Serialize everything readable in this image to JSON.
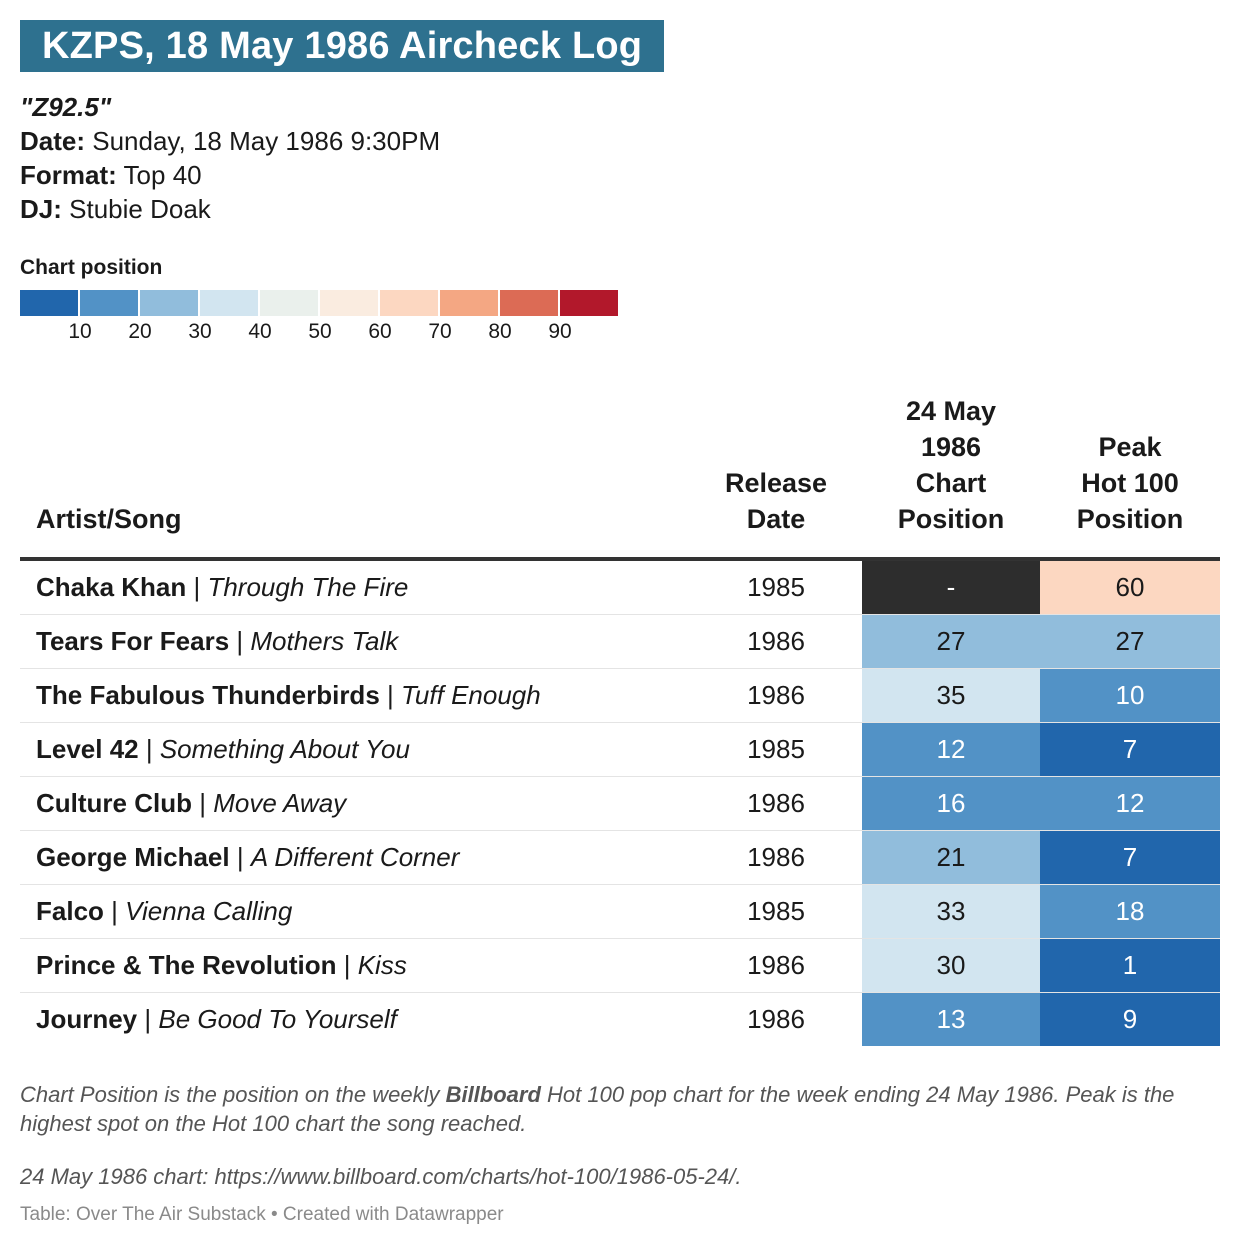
{
  "title": "KZPS, 18 May 1986 Aircheck Log",
  "station_name": "\"Z92.5\"",
  "meta": [
    {
      "label": "Date:",
      "value": "Sunday, 18 May 1986 9:30PM"
    },
    {
      "label": "Format:",
      "value": "Top 40"
    },
    {
      "label": "DJ:",
      "value": "Stubie Doak"
    }
  ],
  "legend": {
    "title": "Chart position",
    "colors": [
      "#2166ac",
      "#5292c6",
      "#91bddc",
      "#d2e5f0",
      "#eaf0ec",
      "#faece0",
      "#fcd7c1",
      "#f4a783",
      "#dc6b55",
      "#b2182b"
    ],
    "ticks": [
      "10",
      "20",
      "30",
      "40",
      "50",
      "60",
      "70",
      "80",
      "90"
    ]
  },
  "chart_data": {
    "type": "table",
    "title": "KZPS, 18 May 1986 Aircheck Log",
    "columns": [
      "Artist/Song",
      "Release Date",
      "24 May 1986 Chart Position",
      "Peak Hot 100 Position"
    ],
    "rows": [
      {
        "artist": "Chaka Khan",
        "song": "Through The Fire",
        "release": "1985",
        "chart": "-",
        "peak": "60",
        "chart_bg": "#2d2d2d",
        "chart_fg": "#ffffff",
        "peak_bg": "#fcd7c1",
        "peak_fg": "#1a1a1a"
      },
      {
        "artist": "Tears For Fears",
        "song": "Mothers Talk",
        "release": "1986",
        "chart": "27",
        "peak": "27",
        "chart_bg": "#91bddc",
        "chart_fg": "#1a1a1a",
        "peak_bg": "#91bddc",
        "peak_fg": "#1a1a1a"
      },
      {
        "artist": "The Fabulous Thunderbirds",
        "song": "Tuff Enough",
        "release": "1986",
        "chart": "35",
        "peak": "10",
        "chart_bg": "#d2e5f0",
        "chart_fg": "#1a1a1a",
        "peak_bg": "#5292c6",
        "peak_fg": "#ffffff"
      },
      {
        "artist": "Level 42",
        "song": "Something About You",
        "release": "1985",
        "chart": "12",
        "peak": "7",
        "chart_bg": "#5292c6",
        "chart_fg": "#ffffff",
        "peak_bg": "#2166ac",
        "peak_fg": "#ffffff"
      },
      {
        "artist": "Culture Club",
        "song": "Move Away",
        "release": "1986",
        "chart": "16",
        "peak": "12",
        "chart_bg": "#5292c6",
        "chart_fg": "#ffffff",
        "peak_bg": "#5292c6",
        "peak_fg": "#ffffff"
      },
      {
        "artist": "George Michael",
        "song": "A Different Corner",
        "release": "1986",
        "chart": "21",
        "peak": "7",
        "chart_bg": "#91bddc",
        "chart_fg": "#1a1a1a",
        "peak_bg": "#2166ac",
        "peak_fg": "#ffffff"
      },
      {
        "artist": "Falco",
        "song": "Vienna Calling",
        "release": "1985",
        "chart": "33",
        "peak": "18",
        "chart_bg": "#d2e5f0",
        "chart_fg": "#1a1a1a",
        "peak_bg": "#5292c6",
        "peak_fg": "#ffffff"
      },
      {
        "artist": "Prince & The Revolution",
        "song": "Kiss",
        "release": "1986",
        "chart": "30",
        "peak": "1",
        "chart_bg": "#d2e5f0",
        "chart_fg": "#1a1a1a",
        "peak_bg": "#2166ac",
        "peak_fg": "#ffffff"
      },
      {
        "artist": "Journey",
        "song": "Be Good To Yourself",
        "release": "1986",
        "chart": "13",
        "peak": "9",
        "chart_bg": "#5292c6",
        "chart_fg": "#ffffff",
        "peak_bg": "#2166ac",
        "peak_fg": "#ffffff"
      }
    ]
  },
  "headers": {
    "artist": "Artist/Song",
    "release": [
      "Release",
      "Date"
    ],
    "chart": [
      "24 May",
      "1986",
      "Chart",
      "Position"
    ],
    "peak": [
      "Peak",
      "Hot 100",
      "Position"
    ]
  },
  "footnote": {
    "before": "Chart Position is the position on the weekly ",
    "bold": "Billboard",
    "after": " Hot 100 pop chart for the week ending 24 May 1986. Peak is the highest spot on the Hot 100 chart the song reached."
  },
  "chart_link": "24 May 1986 chart: https://www.billboard.com/charts/hot-100/1986-05-24/.",
  "credit": "Table: Over The Air Substack • Created with Datawrapper"
}
